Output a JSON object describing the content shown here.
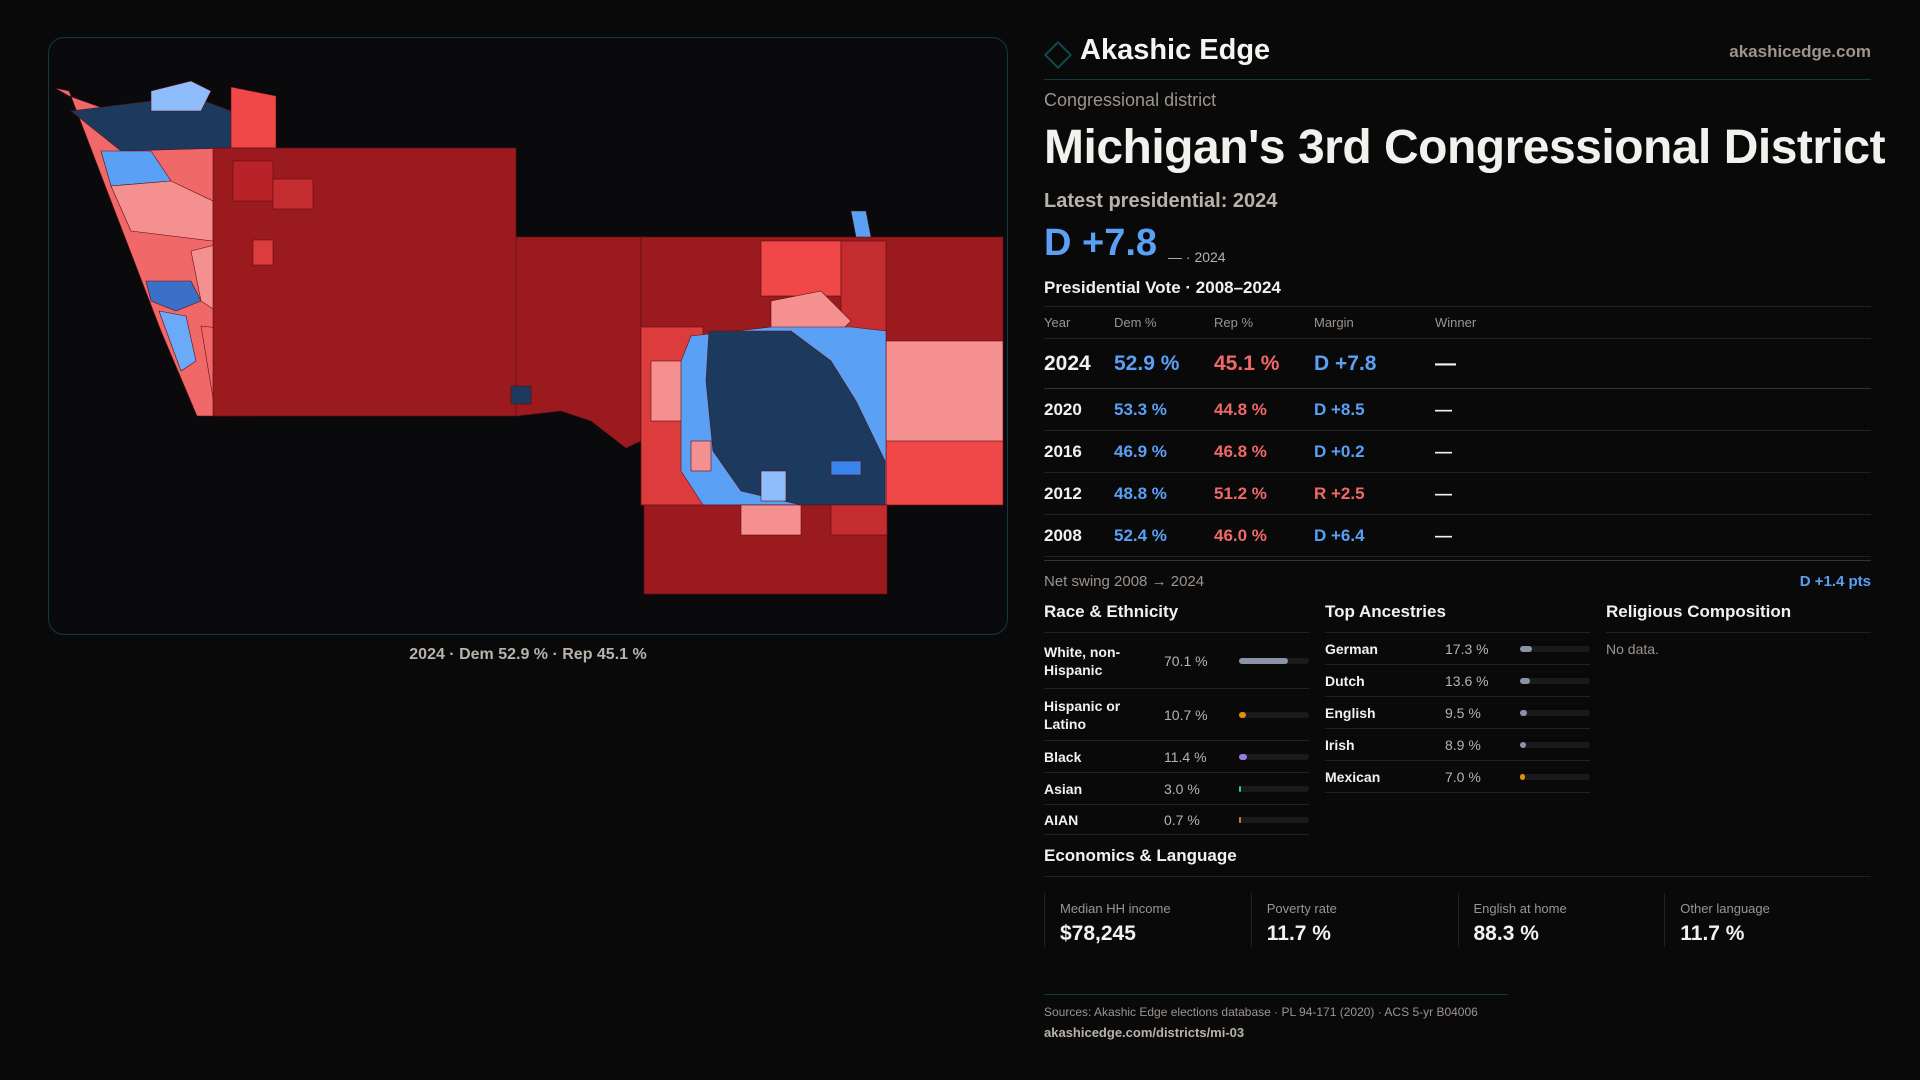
{
  "brand": {
    "name": "Akashic Edge",
    "site": "akashicedge.com",
    "logo_icon": "diamond-icon"
  },
  "kicker": "Congressional district",
  "title": "Michigan's 3rd Congressional District",
  "latest": {
    "label": "Latest presidential: 2024",
    "margin": "D +7.8",
    "sub": "— · 2024"
  },
  "map": {
    "caption": "2024 · Dem 52.9 % · Rep 45.1 %"
  },
  "colors": {
    "dem": "#5aa0f5",
    "rep": "#f06868",
    "dem_dark": "#1c3a5e",
    "rep_dark": "#9a1a1d",
    "accent": "#123a40"
  },
  "votes": {
    "title": "Presidential Vote · 2008–2024",
    "headers": [
      "Year",
      "Dem %",
      "Rep %",
      "Margin",
      "Winner"
    ],
    "rows": [
      {
        "year": "2024",
        "dem": "52.9 %",
        "rep": "45.1 %",
        "margin": "D +7.8",
        "winner": "—"
      },
      {
        "year": "2020",
        "dem": "53.3 %",
        "rep": "44.8 %",
        "margin": "D +8.5",
        "winner": "—"
      },
      {
        "year": "2016",
        "dem": "46.9 %",
        "rep": "46.8 %",
        "margin": "D +0.2",
        "winner": "—"
      },
      {
        "year": "2012",
        "dem": "48.8 %",
        "rep": "51.2 %",
        "margin": "R +2.5",
        "winner": "—"
      },
      {
        "year": "2008",
        "dem": "52.4 %",
        "rep": "46.0 %",
        "margin": "D +6.4",
        "winner": "—"
      }
    ],
    "swing_label": "Net swing 2008 → 2024",
    "swing_value": "D +1.4 pts"
  },
  "race": {
    "title": "Race & Ethnicity",
    "items": [
      {
        "label": "White, non-Hispanic",
        "value": "70.1 %",
        "pct": 70.1,
        "color": "#8a94a6"
      },
      {
        "label": "Hispanic or Latino",
        "value": "10.7 %",
        "pct": 10.7,
        "color": "#e0900a"
      },
      {
        "label": "Black",
        "value": "11.4 %",
        "pct": 11.4,
        "color": "#9a7be0"
      },
      {
        "label": "Asian",
        "value": "3.0 %",
        "pct": 3.0,
        "color": "#2fc4a0"
      },
      {
        "label": "AIAN",
        "value": "0.7 %",
        "pct": 0.7,
        "color": "#e07a2a"
      }
    ]
  },
  "ancestry": {
    "title": "Top Ancestries",
    "items": [
      {
        "label": "German",
        "value": "17.3 %",
        "pct": 17.3,
        "color": "#8a94a6"
      },
      {
        "label": "Dutch",
        "value": "13.6 %",
        "pct": 13.6,
        "color": "#8a94a6"
      },
      {
        "label": "English",
        "value": "9.5 %",
        "pct": 9.5,
        "color": "#8a94a6"
      },
      {
        "label": "Irish",
        "value": "8.9 %",
        "pct": 8.9,
        "color": "#8a94a6"
      },
      {
        "label": "Mexican",
        "value": "7.0 %",
        "pct": 7.0,
        "color": "#e0900a"
      }
    ]
  },
  "religion": {
    "title": "Religious Composition",
    "empty": "No data."
  },
  "econ": {
    "title": "Economics & Language",
    "cards": [
      {
        "label": "Median HH income",
        "value": "$78,245"
      },
      {
        "label": "Poverty rate",
        "value": "11.7 %"
      },
      {
        "label": "English at home",
        "value": "88.3 %"
      },
      {
        "label": "Other language",
        "value": "11.7 %"
      }
    ]
  },
  "footer": {
    "sources": "Sources: Akashic Edge elections database · PL 94-171 (2020) · ACS 5-yr B04006",
    "link": "akashicedge.com/districts/mi-03"
  }
}
